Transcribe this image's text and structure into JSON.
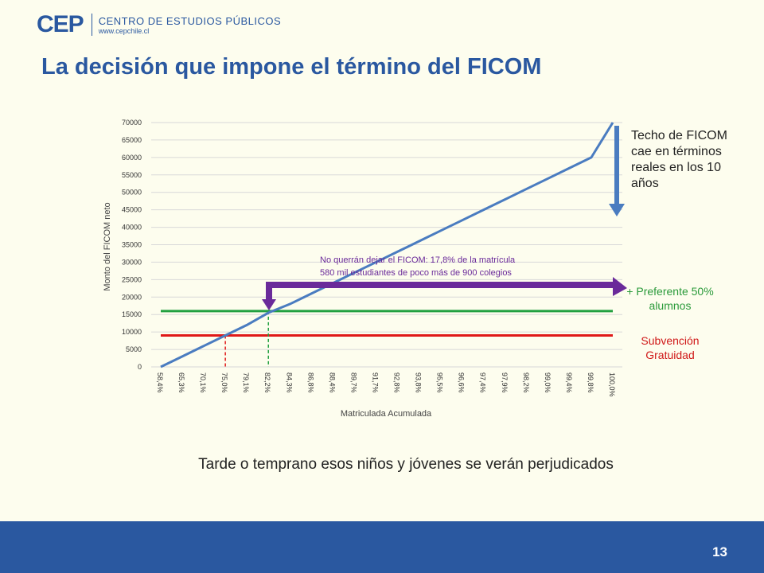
{
  "brand": {
    "mark": "CEP",
    "org": "CENTRO DE ESTUDIOS PÚBLICOS",
    "web": "www.cepchile.cl"
  },
  "title": "La decisión que impone el término del FICOM",
  "notes": {
    "ficom": "Techo de FICOM cae en términos reales en los 10 años",
    "preferente": "+ Preferente 50% alumnos",
    "subvencion": "Subvención Gratuidad"
  },
  "callout": {
    "line1": "No querrán dejar el FICOM: 17,8% de la matrícula",
    "line2": "580 mil estudiantes de poco más de 900 colegios"
  },
  "conclusion": "Tarde o temprano esos niños y jóvenes se verán perjudicados",
  "page_number": "13",
  "colors": {
    "brand": "#2a58a0",
    "line": "#4a7cc0",
    "green": "#22a040",
    "red": "#e01818",
    "purple": "#6a2a9a"
  },
  "chart_data": {
    "type": "line",
    "xlabel": "Matriculada Acumulada",
    "ylabel": "Monto del FICOM neto",
    "ylim": [
      0,
      70000
    ],
    "yticks": [
      0,
      5000,
      10000,
      15000,
      20000,
      25000,
      30000,
      35000,
      40000,
      45000,
      50000,
      55000,
      60000,
      65000,
      70000
    ],
    "categories": [
      "58,4%",
      "65,3%",
      "70,1%",
      "75,0%",
      "79,1%",
      "82,2%",
      "84,3%",
      "86,8%",
      "88,4%",
      "89,7%",
      "91,7%",
      "92,8%",
      "93,8%",
      "95,5%",
      "96,6%",
      "97,4%",
      "97,9%",
      "98,2%",
      "99,0%",
      "99,4%",
      "99,8%",
      "100,0%"
    ],
    "series": [
      {
        "values": [
          0,
          3000,
          6000,
          9000,
          12000,
          15500,
          18000,
          21000,
          24000,
          27000,
          30000,
          33000,
          36000,
          39000,
          42000,
          45000,
          48000,
          51000,
          54000,
          57000,
          60000,
          70000
        ]
      }
    ],
    "reference_lines": [
      {
        "value": 16000,
        "color": "#22a040"
      },
      {
        "value": 9000,
        "color": "#e01818"
      }
    ],
    "markers": [
      {
        "category_index": 3,
        "color": "#e01818"
      },
      {
        "category_index": 5,
        "color": "#22a040"
      }
    ],
    "grid": true
  }
}
